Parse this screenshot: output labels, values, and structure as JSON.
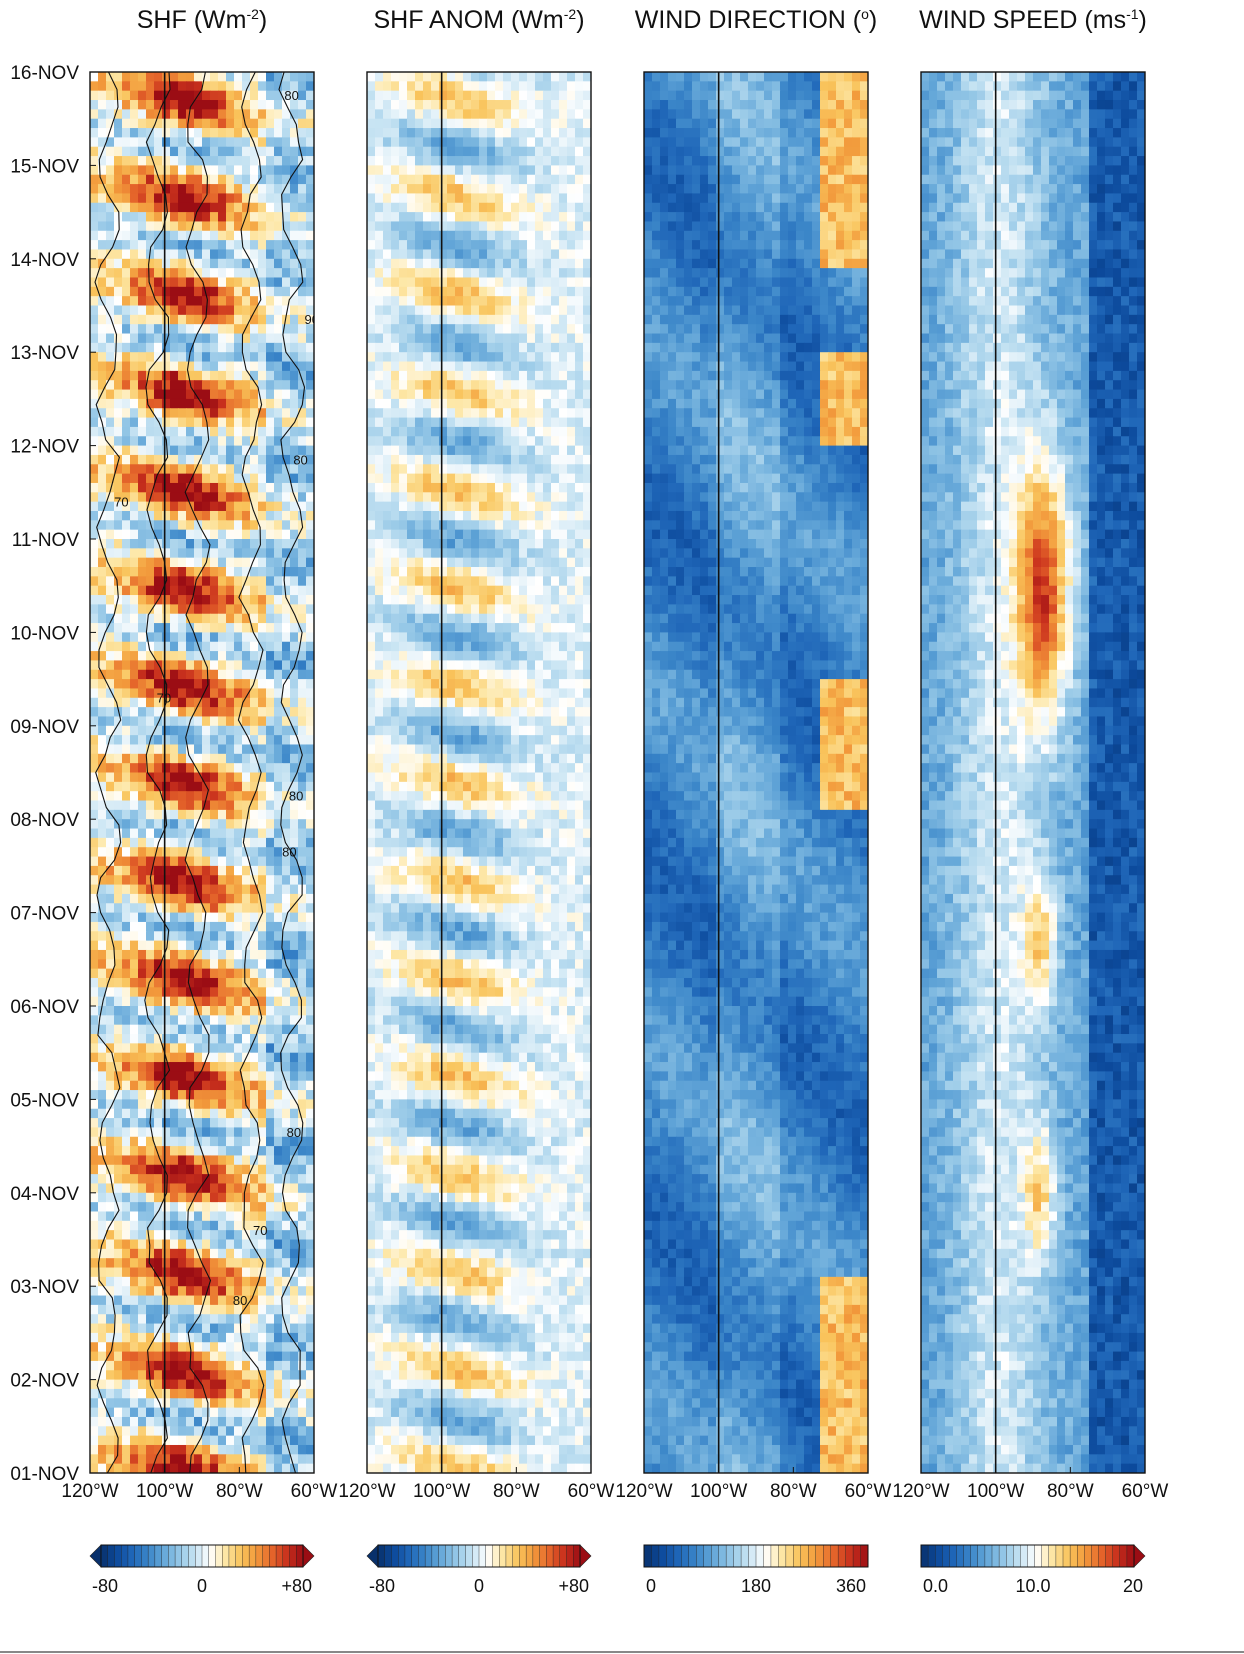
{
  "chart_data": [
    {
      "type": "heatmap",
      "title": "SHF (Wm",
      "title_sup": "-2",
      "title_end": ")",
      "xticks": [
        "120°W",
        "100°W",
        "80°W",
        "60°W"
      ],
      "xlim": [
        -120,
        -60
      ],
      "yticks": [
        "01-NOV",
        "02-NOV",
        "03-NOV",
        "04-NOV",
        "05-NOV",
        "06-NOV",
        "07-NOV",
        "08-NOV",
        "09-NOV",
        "10-NOV",
        "11-NOV",
        "12-NOV",
        "13-NOV",
        "14-NOV",
        "15-NOV",
        "16-NOV"
      ],
      "ref_line_x": -100,
      "colorbar": {
        "min": -80,
        "max": 80,
        "labels": [
          "-80",
          "0",
          "+80"
        ],
        "extend": "both",
        "scheme": "diverging"
      },
      "contour_labels": [
        "70",
        "80",
        "90",
        "80",
        "80",
        "80",
        "70",
        "80",
        "70",
        "80"
      ],
      "description_cells": "warm (positive) bands dominate, strongest near 100°W around 10-11 NOV"
    },
    {
      "type": "heatmap",
      "title": "SHF ANOM (Wm",
      "title_sup": "-2",
      "title_end": ")",
      "xticks": [
        "120°W",
        "100°W",
        "80°W",
        "60°W"
      ],
      "xlim": [
        -120,
        -60
      ],
      "ref_line_x": -100,
      "colorbar": {
        "min": -80,
        "max": 80,
        "labels": [
          "-80",
          "0",
          "+80"
        ],
        "extend": "both",
        "scheme": "diverging"
      }
    },
    {
      "type": "heatmap",
      "title": "WIND DIRECTION (",
      "title_sup": "o",
      "title_end": ")",
      "xticks": [
        "120°W",
        "100°W",
        "80°W",
        "60°W"
      ],
      "xlim": [
        -120,
        -60
      ],
      "ref_line_x": -100,
      "colorbar": {
        "min": 0,
        "max": 360,
        "labels": [
          "0",
          "180",
          "360"
        ],
        "extend": "neither",
        "scheme": "diverging"
      }
    },
    {
      "type": "heatmap",
      "title": "WIND SPEED (ms",
      "title_sup": "-1",
      "title_end": ")",
      "xticks": [
        "120°W",
        "100°W",
        "80°W",
        "60°W"
      ],
      "xlim": [
        -120,
        -60
      ],
      "ref_line_x": -100,
      "colorbar": {
        "min": 0,
        "max": 20,
        "labels": [
          "0.0",
          "10.0",
          "20"
        ],
        "extend": "right",
        "scheme": "diverging"
      }
    }
  ],
  "colors": {
    "scale": [
      "#08306b",
      "#0c4a9c",
      "#1f66b8",
      "#3a85c8",
      "#63a6d8",
      "#93c6e6",
      "#c4e2f2",
      "#ffffff",
      "#fde7a6",
      "#f9c45c",
      "#f29a3c",
      "#e5662b",
      "#c9311d",
      "#9b0d14"
    ],
    "frame": "#111111"
  }
}
